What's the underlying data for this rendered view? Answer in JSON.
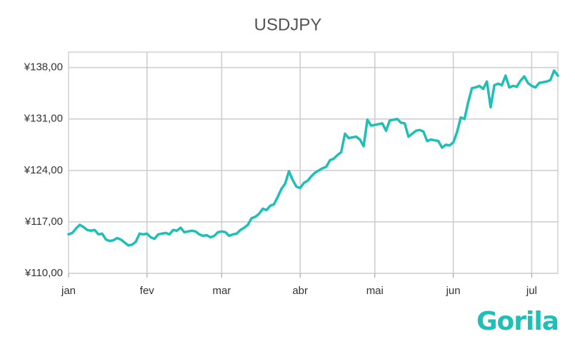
{
  "chart_data": {
    "type": "line",
    "title": "USDJPY",
    "logo": "Gorila",
    "grid": true,
    "ylim": [
      110,
      140.1
    ],
    "yticks": [
      {
        "value": 110,
        "label": "¥110,00"
      },
      {
        "value": 117,
        "label": "¥117,00"
      },
      {
        "value": 124,
        "label": "¥124,00"
      },
      {
        "value": 131,
        "label": "¥131,00"
      },
      {
        "value": 138,
        "label": "¥138,00"
      }
    ],
    "categories": [
      "jan",
      null,
      null,
      null,
      null,
      null,
      null,
      null,
      null,
      null,
      null,
      null,
      null,
      null,
      null,
      null,
      null,
      null,
      null,
      null,
      null,
      "fev",
      null,
      null,
      null,
      null,
      null,
      null,
      null,
      null,
      null,
      null,
      null,
      null,
      null,
      null,
      null,
      null,
      null,
      null,
      null,
      "mar",
      null,
      null,
      null,
      null,
      null,
      null,
      null,
      null,
      null,
      null,
      null,
      null,
      null,
      null,
      null,
      null,
      null,
      null,
      null,
      null,
      "abr",
      null,
      null,
      null,
      null,
      null,
      null,
      null,
      null,
      null,
      null,
      null,
      null,
      null,
      null,
      null,
      null,
      null,
      null,
      null,
      "mai",
      null,
      null,
      null,
      null,
      null,
      null,
      null,
      null,
      null,
      null,
      null,
      null,
      null,
      null,
      null,
      null,
      null,
      null,
      null,
      null,
      "jun",
      null,
      null,
      null,
      null,
      null,
      null,
      null,
      null,
      null,
      null,
      null,
      null,
      null,
      null,
      null,
      null,
      null,
      null,
      null,
      null,
      "jul",
      null,
      null,
      null,
      null,
      null,
      null,
      null
    ],
    "series": [
      {
        "name": "USDJPY",
        "color": "#1fbfb8",
        "values": [
          115.3,
          115.5,
          116.1,
          116.6,
          116.3,
          115.9,
          115.8,
          115.9,
          115.3,
          115.4,
          114.6,
          114.4,
          114.5,
          114.8,
          114.6,
          114.2,
          113.8,
          113.9,
          114.3,
          115.4,
          115.3,
          115.4,
          114.9,
          114.7,
          115.3,
          115.4,
          115.5,
          115.3,
          115.9,
          115.8,
          116.2,
          115.6,
          115.7,
          115.8,
          115.7,
          115.3,
          115.1,
          115.2,
          114.9,
          115.1,
          115.6,
          115.7,
          115.6,
          115.1,
          115.3,
          115.4,
          115.9,
          116.2,
          116.6,
          117.5,
          117.7,
          118.1,
          118.8,
          118.6,
          119.2,
          119.4,
          120.4,
          121.5,
          122.2,
          123.9,
          122.7,
          121.8,
          121.6,
          122.3,
          122.6,
          123.2,
          123.7,
          124.0,
          124.3,
          124.5,
          125.4,
          125.6,
          126.1,
          126.5,
          129.0,
          128.4,
          128.5,
          128.6,
          128.2,
          127.3,
          130.9,
          130.1,
          130.2,
          130.3,
          130.4,
          129.4,
          130.8,
          130.9,
          131.0,
          130.5,
          130.4,
          128.6,
          129.0,
          129.4,
          129.5,
          129.3,
          128.0,
          128.2,
          128.1,
          128.0,
          127.1,
          127.5,
          127.4,
          127.8,
          129.2,
          131.2,
          131.0,
          133.3,
          135.2,
          135.3,
          135.5,
          135.1,
          136.1,
          132.6,
          135.6,
          135.8,
          135.6,
          136.9,
          135.3,
          135.5,
          135.4,
          136.2,
          136.8,
          135.9,
          135.5,
          135.3,
          135.9,
          136.0,
          136.1,
          136.3,
          137.6,
          136.9
        ]
      }
    ]
  }
}
